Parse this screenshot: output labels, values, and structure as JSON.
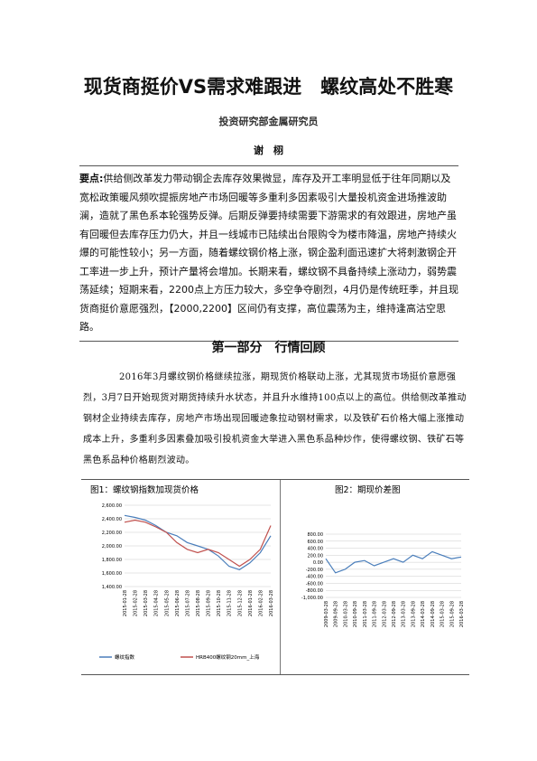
{
  "header": {
    "title": "现货商挺价VS需求难跟进　螺纹高处不胜寒",
    "department": "投资研究部金属研究员",
    "author": "谢　栩"
  },
  "summary": {
    "label": "要点:",
    "text": "供给侧改革发力带动钢企去库存效果微显，库存及开工率明显低于往年同期以及宽松政策暖风频吹提振房地产市场回暖等多重利多因素吸引大量投机资金进场推波助澜，造就了黑色系本轮强势反弹。后期反弹要持续需要下游需求的有效跟进，房地产虽有回暖但去库存压力仍大，并且一线城市已陆续出台限购令为楼市降温，房地产持续火爆的可能性较小；另一方面，随着螺纹钢价格上涨，钢企盈利面迅速扩大将刺激钢企开工率进一步上升，预计产量将会增加。长期来看，螺纹钢不具备持续上涨动力，弱势震荡延续；短期来看，2200点上方压力较大，多空争夺剧烈，4月仍是传统旺季，并且现货商挺价意愿强烈，【2000,2200】区间仍有支撑，高位震荡为主，维持逢高沽空思路。"
  },
  "section": {
    "heading": "第一部分　行情回顾",
    "paragraph": "2016年3月螺纹钢价格继续拉涨，期现货价格联动上涨，尤其现货市场挺价意愿强烈，3月7日开始现货对期货持续升水状态，并且升水维持100点以上的高位。供给侧改革推动钢材企业持续去库存，房地产市场出现回暖迹象拉动钢材需求，以及铁矿石价格大幅上涨推动成本上升，多重利多因素叠加吸引投机资金大举进入黑色系品种炒作，使得螺纹钢、铁矿石等黑色系品种价格剧烈波动。"
  },
  "chart_data": [
    {
      "type": "line",
      "title": "图1：螺纹钢指数加现货价格",
      "categories": [
        "2015-01-28",
        "2015-02-28",
        "2015-03-28",
        "2015-04-28",
        "2015-05-28",
        "2015-06-28",
        "2015-07-28",
        "2015-08-28",
        "2015-09-28",
        "2015-10-28",
        "2015-11-28",
        "2015-12-28",
        "2016-01-28",
        "2016-02-28",
        "2016-03-28"
      ],
      "series": [
        {
          "name": "螺纹指数",
          "color": "#4a7ebb",
          "values": [
            2450,
            2420,
            2380,
            2300,
            2200,
            2150,
            2050,
            2000,
            1950,
            1850,
            1700,
            1650,
            1750,
            1900,
            2150
          ]
        },
        {
          "name": "HRB400螺纹钢20mm_上海",
          "color": "#c0504d",
          "values": [
            2350,
            2380,
            2350,
            2280,
            2200,
            2050,
            1950,
            1900,
            1950,
            1900,
            1800,
            1700,
            1800,
            1950,
            2300
          ]
        }
      ],
      "ylim": [
        1400,
        2600
      ],
      "yticks": [
        {
          "value": 1400,
          "label": "1,400.00"
        },
        {
          "value": 1600,
          "label": "1,600.00"
        },
        {
          "value": 1800,
          "label": "1,800.00"
        },
        {
          "value": 2000,
          "label": "2,000.00"
        },
        {
          "value": 2200,
          "label": "2,200.00"
        },
        {
          "value": 2400,
          "label": "2,400.00"
        },
        {
          "value": 2600,
          "label": "2,600.00"
        }
      ],
      "grid": true
    },
    {
      "type": "line",
      "title": "图2：期现价差图",
      "categories": [
        "2009-03-28",
        "2009-09-28",
        "2010-03-28",
        "2010-09-28",
        "2011-03-28",
        "2011-09-28",
        "2012-03-28",
        "2012-09-28",
        "2013-03-28",
        "2013-09-28",
        "2014-03-28",
        "2014-09-28",
        "2015-03-28",
        "2015-09-28",
        "2016-03-28"
      ],
      "series": [
        {
          "name": null,
          "color": "#4a7ebb",
          "values": [
            100,
            -300,
            -200,
            0,
            50,
            -100,
            0,
            100,
            0,
            200,
            100,
            300,
            200,
            100,
            150
          ]
        }
      ],
      "ylim": [
        -1000,
        800
      ],
      "yticks": [
        {
          "value": -1000,
          "label": "-1,000.00"
        },
        {
          "value": -800,
          "label": "-800.00"
        },
        {
          "value": -600,
          "label": "-600.00"
        },
        {
          "value": -400,
          "label": "-400.00"
        },
        {
          "value": -200,
          "label": "-200.00"
        },
        {
          "value": 0,
          "label": "0.00"
        },
        {
          "value": 200,
          "label": "200.00"
        },
        {
          "value": 400,
          "label": "400.00"
        },
        {
          "value": 600,
          "label": "600.00"
        },
        {
          "value": 800,
          "label": "800.00"
        }
      ],
      "grid": true
    }
  ]
}
